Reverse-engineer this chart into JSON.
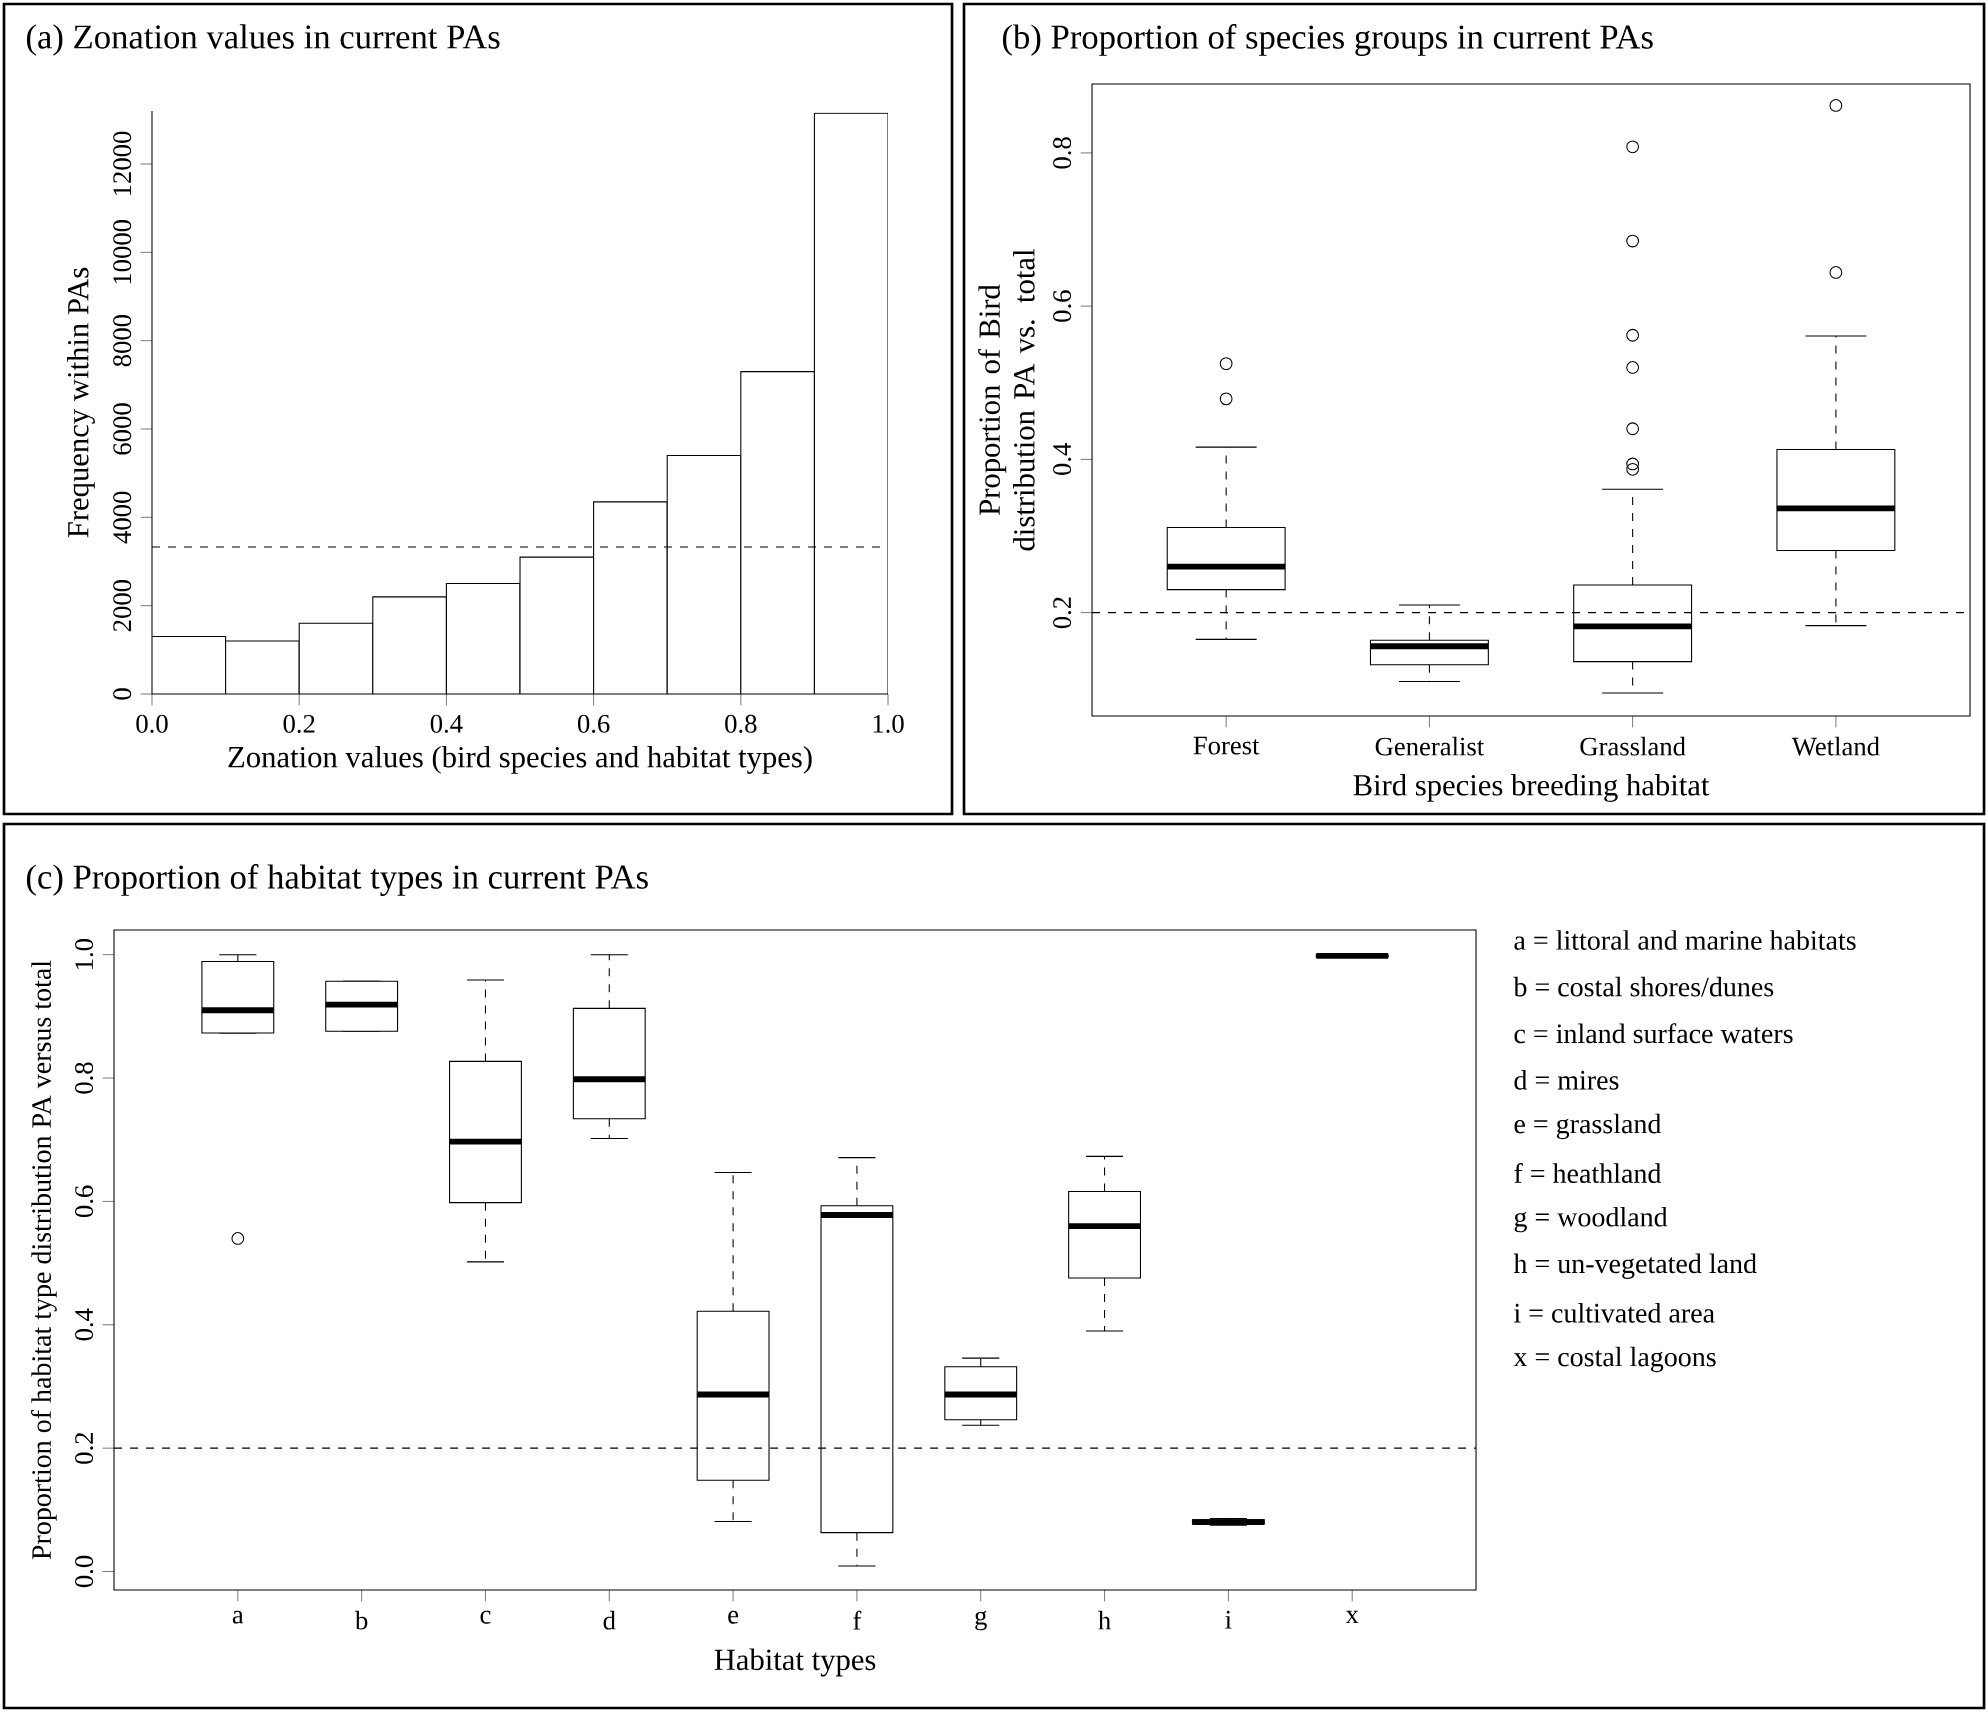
{
  "chart_data": [
    {
      "type": "histogram",
      "title": "(a)  Zonation values in current PAs",
      "xlabel": "Zonation values (bird species and habitat types)",
      "ylabel": "Frequency within PAs",
      "bins": [
        0,
        0.1,
        0.2,
        0.3,
        0.4,
        0.5,
        0.6,
        0.7,
        0.8,
        0.9,
        1.0
      ],
      "values": [
        1300,
        1200,
        1600,
        2200,
        2500,
        3100,
        4350,
        5400,
        7300,
        13150
      ],
      "xlim": [
        0,
        1
      ],
      "ylim": [
        0,
        13200
      ],
      "xticks": [
        {
          "value": 0,
          "label": "0.0"
        },
        0.2,
        0.4,
        0.6,
        0.8,
        {
          "value": 1,
          "label": "1.0"
        }
      ],
      "yticks": [
        0,
        2000,
        4000,
        6000,
        8000,
        10000,
        12000
      ],
      "ref_lines": [
        {
          "axis": "y",
          "value": 3330,
          "line_style": "dashed"
        }
      ]
    },
    {
      "type": "box",
      "title": "(b)  Proportion of species groups in current PAs",
      "xlabel": "Bird species breeding habitat",
      "ylabel": "Proportion of Bird distribution PA vs. total",
      "categories": [
        "Forest",
        "Generalist",
        "Grassland",
        "Wetland"
      ],
      "boxes": [
        {
          "low": 0.165,
          "q1": 0.23,
          "median": 0.26,
          "q3": 0.311,
          "high": 0.416,
          "outliers": [
            0.479,
            0.525
          ]
        },
        {
          "low": 0.11,
          "q1": 0.132,
          "median": 0.156,
          "q3": 0.164,
          "high": 0.21
        },
        {
          "low": 0.095,
          "q1": 0.136,
          "median": 0.182,
          "q3": 0.236,
          "high": 0.361,
          "outliers": [
            0.387,
            0.394,
            0.44,
            0.52,
            0.562,
            0.685,
            0.808
          ]
        },
        {
          "low": 0.183,
          "q1": 0.281,
          "median": 0.336,
          "q3": 0.413,
          "high": 0.561,
          "outliers": [
            0.644,
            0.862
          ]
        }
      ],
      "ylim": [
        0.065,
        0.89
      ],
      "yticks": [
        0.2,
        0.4,
        0.6,
        0.8
      ],
      "ref_lines": [
        {
          "axis": "y",
          "value": 0.2,
          "line_style": "dashed"
        }
      ]
    },
    {
      "type": "box",
      "title": "(c)  Proportion of habitat types in current PAs",
      "xlabel": "Habitat types",
      "ylabel": "Proportion of habitat type distribution PA versus total",
      "categories": [
        "a",
        "b",
        "c",
        "d",
        "e",
        "f",
        "g",
        "h",
        "i",
        "x"
      ],
      "boxes": [
        {
          "low": 0.873,
          "q1": 0.873,
          "median": 0.91,
          "q3": 0.989,
          "high": 1.0,
          "outliers": [
            0.54
          ]
        },
        {
          "low": 0.876,
          "q1": 0.876,
          "median": 0.919,
          "q3": 0.957,
          "high": 0.957
        },
        {
          "low": 0.502,
          "q1": 0.598,
          "median": 0.697,
          "q3": 0.827,
          "high": 0.959
        },
        {
          "low": 0.702,
          "q1": 0.734,
          "median": 0.798,
          "q3": 0.913,
          "high": 1.0
        },
        {
          "low": 0.081,
          "q1": 0.148,
          "median": 0.287,
          "q3": 0.422,
          "high": 0.647
        },
        {
          "low": 0.009,
          "q1": 0.063,
          "median": 0.578,
          "q3": 0.593,
          "high": 0.671
        },
        {
          "low": 0.237,
          "q1": 0.246,
          "median": 0.287,
          "q3": 0.332,
          "high": 0.346
        },
        {
          "low": 0.39,
          "q1": 0.476,
          "median": 0.56,
          "q3": 0.616,
          "high": 0.673
        },
        {
          "low": 0.075,
          "q1": 0.077,
          "median": 0.08,
          "q3": 0.084,
          "high": 0.086
        },
        {
          "low": 0.996,
          "q1": 0.996,
          "median": 0.998,
          "q3": 1.0,
          "high": 1.0
        }
      ],
      "ylim": [
        -0.03,
        1.04
      ],
      "yticks": [
        {
          "value": 0,
          "label": "0.0"
        },
        0.2,
        0.4,
        0.6,
        0.8,
        {
          "value": 1,
          "label": "1.0"
        }
      ],
      "ref_lines": [
        {
          "axis": "y",
          "value": 0.2,
          "line_style": "dashed"
        }
      ],
      "annotations": [
        "a = littoral and marine habitats",
        "b = costal shores/dunes",
        "c = inland surface waters",
        "d = mires",
        "e = grassland",
        "f = heathland",
        "g = woodland",
        "h = un-vegetated land",
        "i = cultivated area",
        "x = costal lagoons"
      ]
    }
  ]
}
